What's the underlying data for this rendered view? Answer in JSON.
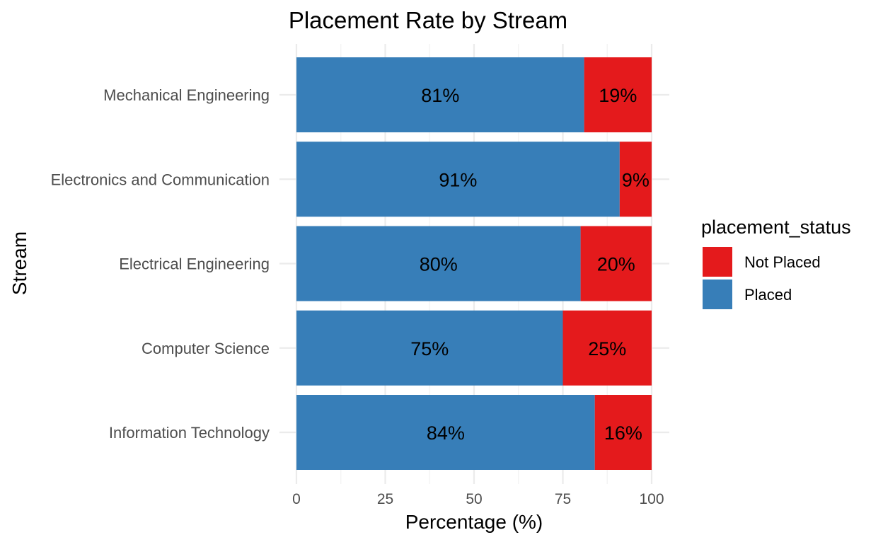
{
  "chart_data": {
    "type": "bar",
    "orientation": "horizontal",
    "stacked": true,
    "title": "Placement Rate by Stream",
    "xlabel": "Percentage (%)",
    "ylabel": "Stream",
    "xlim": [
      0,
      100
    ],
    "x_ticks": [
      0,
      25,
      50,
      75,
      100
    ],
    "grid": true,
    "legend_position": "right",
    "legend_title": "placement_status",
    "categories": [
      "Mechanical Engineering",
      "Electronics and Communication",
      "Electrical Engineering",
      "Computer Science",
      "Information Technology"
    ],
    "series": [
      {
        "name": "Placed",
        "color": "#377EB8",
        "values": [
          81,
          91,
          80,
          75,
          84
        ],
        "labels": [
          "81%",
          "91%",
          "80%",
          "75%",
          "84%"
        ]
      },
      {
        "name": "Not Placed",
        "color": "#E41A1C",
        "values": [
          19,
          9,
          20,
          25,
          16
        ],
        "labels": [
          "19%",
          "9%",
          "20%",
          "25%",
          "16%"
        ]
      }
    ],
    "legend_order": [
      "Not Placed",
      "Placed"
    ]
  }
}
